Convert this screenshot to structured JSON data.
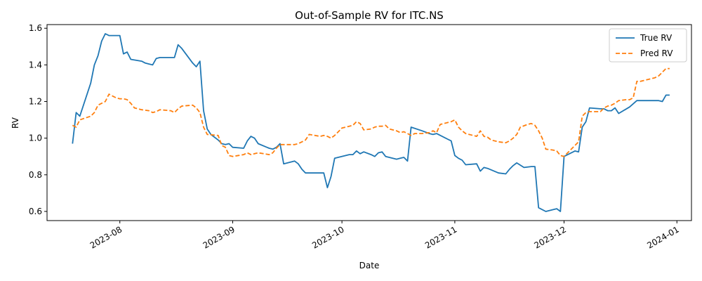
{
  "chart_data": {
    "type": "line",
    "title": "Out-of-Sample RV for ITC.NS",
    "xlabel": "Date",
    "ylabel": "RV",
    "x_axis_type": "date",
    "xlim": [
      "2023-07-12",
      "2024-01-05"
    ],
    "ylim": [
      0.55,
      1.62
    ],
    "x_ticks": [
      {
        "date": "2023-08-01",
        "label": "2023-08"
      },
      {
        "date": "2023-09-01",
        "label": "2023-09"
      },
      {
        "date": "2023-10-01",
        "label": "2023-10"
      },
      {
        "date": "2023-11-01",
        "label": "2023-11"
      },
      {
        "date": "2023-12-01",
        "label": "2023-12"
      },
      {
        "date": "2024-01-01",
        "label": "2024-01"
      }
    ],
    "y_ticks": [
      {
        "value": 0.6,
        "label": "0.6"
      },
      {
        "value": 0.8,
        "label": "0.8"
      },
      {
        "value": 1.0,
        "label": "1.0"
      },
      {
        "value": 1.2,
        "label": "1.2"
      },
      {
        "value": 1.4,
        "label": "1.4"
      },
      {
        "value": 1.6,
        "label": "1.6"
      }
    ],
    "grid": false,
    "legend_position": "top-right",
    "series": [
      {
        "name": "True RV",
        "color": "#1f77b4",
        "style": "solid",
        "points": [
          [
            "2023-07-19",
            0.97
          ],
          [
            "2023-07-20",
            1.14
          ],
          [
            "2023-07-21",
            1.12
          ],
          [
            "2023-07-24",
            1.3
          ],
          [
            "2023-07-25",
            1.4
          ],
          [
            "2023-07-26",
            1.45
          ],
          [
            "2023-07-27",
            1.53
          ],
          [
            "2023-07-28",
            1.57
          ],
          [
            "2023-07-29",
            1.56
          ],
          [
            "2023-07-31",
            1.56
          ],
          [
            "2023-08-01",
            1.56
          ],
          [
            "2023-08-02",
            1.46
          ],
          [
            "2023-08-03",
            1.47
          ],
          [
            "2023-08-04",
            1.43
          ],
          [
            "2023-08-07",
            1.42
          ],
          [
            "2023-08-08",
            1.41
          ],
          [
            "2023-08-09",
            1.405
          ],
          [
            "2023-08-10",
            1.4
          ],
          [
            "2023-08-11",
            1.435
          ],
          [
            "2023-08-12",
            1.44
          ],
          [
            "2023-08-14",
            1.44
          ],
          [
            "2023-08-16",
            1.44
          ],
          [
            "2023-08-17",
            1.51
          ],
          [
            "2023-08-18",
            1.49
          ],
          [
            "2023-08-21",
            1.41
          ],
          [
            "2023-08-22",
            1.39
          ],
          [
            "2023-08-23",
            1.42
          ],
          [
            "2023-08-24",
            1.15
          ],
          [
            "2023-08-25",
            1.05
          ],
          [
            "2023-08-26",
            1.02
          ],
          [
            "2023-08-28",
            0.99
          ],
          [
            "2023-08-29",
            0.97
          ],
          [
            "2023-08-30",
            0.965
          ],
          [
            "2023-08-31",
            0.97
          ],
          [
            "2023-09-01",
            0.95
          ],
          [
            "2023-09-04",
            0.945
          ],
          [
            "2023-09-05",
            0.985
          ],
          [
            "2023-09-06",
            1.01
          ],
          [
            "2023-09-07",
            1.0
          ],
          [
            "2023-09-08",
            0.97
          ],
          [
            "2023-09-11",
            0.945
          ],
          [
            "2023-09-12",
            0.94
          ],
          [
            "2023-09-13",
            0.95
          ],
          [
            "2023-09-14",
            0.97
          ],
          [
            "2023-09-15",
            0.86
          ],
          [
            "2023-09-18",
            0.875
          ],
          [
            "2023-09-19",
            0.86
          ],
          [
            "2023-09-20",
            0.83
          ],
          [
            "2023-09-21",
            0.81
          ],
          [
            "2023-09-22",
            0.81
          ],
          [
            "2023-09-25",
            0.81
          ],
          [
            "2023-09-26",
            0.81
          ],
          [
            "2023-09-27",
            0.73
          ],
          [
            "2023-09-28",
            0.79
          ],
          [
            "2023-09-29",
            0.89
          ],
          [
            "2023-10-03",
            0.91
          ],
          [
            "2023-10-04",
            0.91
          ],
          [
            "2023-10-05",
            0.93
          ],
          [
            "2023-10-06",
            0.915
          ],
          [
            "2023-10-07",
            0.925
          ],
          [
            "2023-10-09",
            0.91
          ],
          [
            "2023-10-10",
            0.9
          ],
          [
            "2023-10-11",
            0.92
          ],
          [
            "2023-10-12",
            0.925
          ],
          [
            "2023-10-13",
            0.9
          ],
          [
            "2023-10-16",
            0.885
          ],
          [
            "2023-10-17",
            0.89
          ],
          [
            "2023-10-18",
            0.895
          ],
          [
            "2023-10-19",
            0.875
          ],
          [
            "2023-10-20",
            1.06
          ],
          [
            "2023-10-23",
            1.04
          ],
          [
            "2023-10-25",
            1.025
          ],
          [
            "2023-10-26",
            1.02
          ],
          [
            "2023-10-27",
            1.025
          ],
          [
            "2023-10-30",
            0.995
          ],
          [
            "2023-10-31",
            0.985
          ],
          [
            "2023-11-01",
            0.905
          ],
          [
            "2023-11-02",
            0.89
          ],
          [
            "2023-11-03",
            0.88
          ],
          [
            "2023-11-04",
            0.855
          ],
          [
            "2023-11-07",
            0.86
          ],
          [
            "2023-11-08",
            0.82
          ],
          [
            "2023-11-09",
            0.84
          ],
          [
            "2023-11-10",
            0.835
          ],
          [
            "2023-11-13",
            0.81
          ],
          [
            "2023-11-15",
            0.805
          ],
          [
            "2023-11-16",
            0.83
          ],
          [
            "2023-11-17",
            0.85
          ],
          [
            "2023-11-18",
            0.865
          ],
          [
            "2023-11-20",
            0.84
          ],
          [
            "2023-11-22",
            0.845
          ],
          [
            "2023-11-23",
            0.845
          ],
          [
            "2023-11-24",
            0.62
          ],
          [
            "2023-11-26",
            0.6
          ],
          [
            "2023-11-28",
            0.61
          ],
          [
            "2023-11-29",
            0.615
          ],
          [
            "2023-11-30",
            0.6
          ],
          [
            "2023-12-01",
            0.9
          ],
          [
            "2023-12-04",
            0.93
          ],
          [
            "2023-12-05",
            0.925
          ],
          [
            "2023-12-06",
            1.06
          ],
          [
            "2023-12-07",
            1.09
          ],
          [
            "2023-12-08",
            1.165
          ],
          [
            "2023-12-11",
            1.16
          ],
          [
            "2023-12-12",
            1.16
          ],
          [
            "2023-12-13",
            1.15
          ],
          [
            "2023-12-14",
            1.15
          ],
          [
            "2023-12-15",
            1.165
          ],
          [
            "2023-12-16",
            1.135
          ],
          [
            "2023-12-19",
            1.17
          ],
          [
            "2023-12-21",
            1.205
          ],
          [
            "2023-12-26",
            1.205
          ],
          [
            "2023-12-27",
            1.205
          ],
          [
            "2023-12-28",
            1.2
          ],
          [
            "2023-12-29",
            1.235
          ],
          [
            "2023-12-30",
            1.235
          ]
        ]
      },
      {
        "name": "Pred RV",
        "color": "#ff7f0e",
        "style": "dashed",
        "points": [
          [
            "2023-07-19",
            1.07
          ],
          [
            "2023-07-20",
            1.06
          ],
          [
            "2023-07-21",
            1.1
          ],
          [
            "2023-07-24",
            1.12
          ],
          [
            "2023-07-25",
            1.14
          ],
          [
            "2023-07-26",
            1.18
          ],
          [
            "2023-07-27",
            1.19
          ],
          [
            "2023-07-28",
            1.2
          ],
          [
            "2023-07-29",
            1.24
          ],
          [
            "2023-07-31",
            1.22
          ],
          [
            "2023-08-01",
            1.215
          ],
          [
            "2023-08-02",
            1.215
          ],
          [
            "2023-08-03",
            1.21
          ],
          [
            "2023-08-04",
            1.19
          ],
          [
            "2023-08-05",
            1.165
          ],
          [
            "2023-08-07",
            1.155
          ],
          [
            "2023-08-09",
            1.15
          ],
          [
            "2023-08-10",
            1.14
          ],
          [
            "2023-08-11",
            1.145
          ],
          [
            "2023-08-12",
            1.155
          ],
          [
            "2023-08-15",
            1.15
          ],
          [
            "2023-08-16",
            1.14
          ],
          [
            "2023-08-17",
            1.16
          ],
          [
            "2023-08-18",
            1.175
          ],
          [
            "2023-08-21",
            1.18
          ],
          [
            "2023-08-22",
            1.165
          ],
          [
            "2023-08-23",
            1.14
          ],
          [
            "2023-08-24",
            1.06
          ],
          [
            "2023-08-25",
            1.02
          ],
          [
            "2023-08-28",
            1.015
          ],
          [
            "2023-08-29",
            0.96
          ],
          [
            "2023-08-30",
            0.95
          ],
          [
            "2023-08-31",
            0.905
          ],
          [
            "2023-09-01",
            0.9
          ],
          [
            "2023-09-04",
            0.91
          ],
          [
            "2023-09-05",
            0.92
          ],
          [
            "2023-09-06",
            0.91
          ],
          [
            "2023-09-07",
            0.915
          ],
          [
            "2023-09-08",
            0.92
          ],
          [
            "2023-09-11",
            0.91
          ],
          [
            "2023-09-12",
            0.92
          ],
          [
            "2023-09-13",
            0.945
          ],
          [
            "2023-09-14",
            0.965
          ],
          [
            "2023-09-15",
            0.965
          ],
          [
            "2023-09-18",
            0.965
          ],
          [
            "2023-09-19",
            0.97
          ],
          [
            "2023-09-20",
            0.98
          ],
          [
            "2023-09-21",
            0.99
          ],
          [
            "2023-09-22",
            1.02
          ],
          [
            "2023-09-25",
            1.01
          ],
          [
            "2023-09-26",
            1.015
          ],
          [
            "2023-09-27",
            1.01
          ],
          [
            "2023-09-28",
            1.0
          ],
          [
            "2023-09-29",
            1.015
          ],
          [
            "2023-10-01",
            1.055
          ],
          [
            "2023-10-03",
            1.065
          ],
          [
            "2023-10-04",
            1.07
          ],
          [
            "2023-10-05",
            1.09
          ],
          [
            "2023-10-06",
            1.08
          ],
          [
            "2023-10-07",
            1.045
          ],
          [
            "2023-10-09",
            1.05
          ],
          [
            "2023-10-10",
            1.06
          ],
          [
            "2023-10-11",
            1.065
          ],
          [
            "2023-10-12",
            1.065
          ],
          [
            "2023-10-13",
            1.07
          ],
          [
            "2023-10-14",
            1.05
          ],
          [
            "2023-10-16",
            1.04
          ],
          [
            "2023-10-17",
            1.03
          ],
          [
            "2023-10-18",
            1.035
          ],
          [
            "2023-10-19",
            1.025
          ],
          [
            "2023-10-20",
            1.015
          ],
          [
            "2023-10-21",
            1.025
          ],
          [
            "2023-10-23",
            1.025
          ],
          [
            "2023-10-25",
            1.03
          ],
          [
            "2023-10-26",
            1.04
          ],
          [
            "2023-10-27",
            1.03
          ],
          [
            "2023-10-28",
            1.075
          ],
          [
            "2023-10-30",
            1.085
          ],
          [
            "2023-10-31",
            1.09
          ],
          [
            "2023-11-01",
            1.1
          ],
          [
            "2023-11-02",
            1.06
          ],
          [
            "2023-11-03",
            1.04
          ],
          [
            "2023-11-04",
            1.025
          ],
          [
            "2023-11-07",
            1.01
          ],
          [
            "2023-11-08",
            1.04
          ],
          [
            "2023-11-09",
            1.01
          ],
          [
            "2023-11-10",
            1.005
          ],
          [
            "2023-11-11",
            0.99
          ],
          [
            "2023-11-13",
            0.98
          ],
          [
            "2023-11-15",
            0.975
          ],
          [
            "2023-11-16",
            0.985
          ],
          [
            "2023-11-17",
            1.0
          ],
          [
            "2023-11-18",
            1.02
          ],
          [
            "2023-11-19",
            1.06
          ],
          [
            "2023-11-21",
            1.075
          ],
          [
            "2023-11-22",
            1.08
          ],
          [
            "2023-11-23",
            1.07
          ],
          [
            "2023-11-24",
            1.04
          ],
          [
            "2023-11-25",
            1.0
          ],
          [
            "2023-11-26",
            0.94
          ],
          [
            "2023-11-28",
            0.935
          ],
          [
            "2023-11-29",
            0.93
          ],
          [
            "2023-11-30",
            0.905
          ],
          [
            "2023-12-01",
            0.9
          ],
          [
            "2023-12-04",
            0.96
          ],
          [
            "2023-12-05",
            0.98
          ],
          [
            "2023-12-06",
            1.12
          ],
          [
            "2023-12-07",
            1.14
          ],
          [
            "2023-12-08",
            1.145
          ],
          [
            "2023-12-11",
            1.145
          ],
          [
            "2023-12-12",
            1.165
          ],
          [
            "2023-12-13",
            1.175
          ],
          [
            "2023-12-14",
            1.18
          ],
          [
            "2023-12-15",
            1.19
          ],
          [
            "2023-12-16",
            1.205
          ],
          [
            "2023-12-18",
            1.21
          ],
          [
            "2023-12-19",
            1.21
          ],
          [
            "2023-12-20",
            1.22
          ],
          [
            "2023-12-21",
            1.31
          ],
          [
            "2023-12-22",
            1.31
          ],
          [
            "2023-12-26",
            1.33
          ],
          [
            "2023-12-27",
            1.34
          ],
          [
            "2023-12-28",
            1.36
          ],
          [
            "2023-12-29",
            1.38
          ],
          [
            "2023-12-30",
            1.38
          ]
        ]
      }
    ]
  }
}
